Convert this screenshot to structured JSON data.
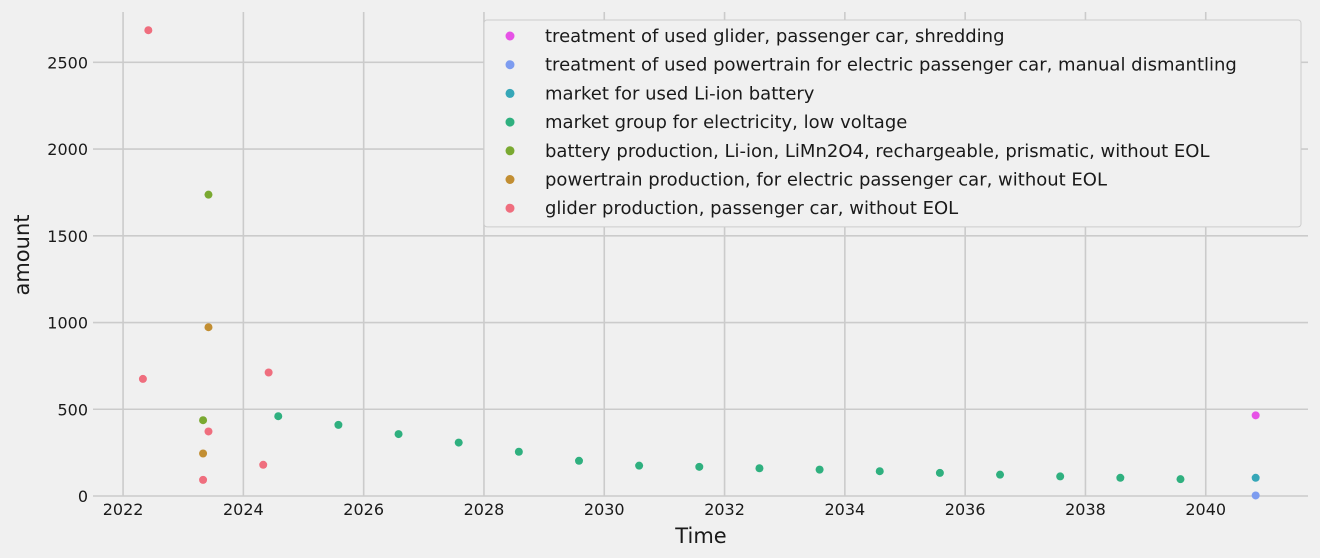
{
  "chart_data": {
    "type": "scatter",
    "title": "",
    "xlabel": "Time",
    "ylabel": "amount",
    "xlim": [
      2021.5,
      2041.7
    ],
    "ylim": [
      0,
      2790
    ],
    "xticks": [
      "2022",
      "2024",
      "2026",
      "2028",
      "2030",
      "2032",
      "2034",
      "2036",
      "2038",
      "2040"
    ],
    "yticks": [
      "0",
      "500",
      "1000",
      "1500",
      "2000",
      "2500"
    ],
    "grid": true,
    "legend_position": "top-right",
    "series": [
      {
        "name": "treatment of used glider, passenger car, shredding",
        "color": "#e652e6",
        "points": [
          [
            2040.83,
            465
          ]
        ]
      },
      {
        "name": "treatment of used powertrain for electric passenger car, manual dismantling",
        "color": "#7d9cf0",
        "points": [
          [
            2040.83,
            3
          ]
        ]
      },
      {
        "name": "market for used Li-ion battery",
        "color": "#36a7b8",
        "points": [
          [
            2040.83,
            105
          ]
        ]
      },
      {
        "name": "market group for electricity, low voltage",
        "color": "#2fb07f",
        "points": [
          [
            2024.58,
            460
          ],
          [
            2025.58,
            410
          ],
          [
            2026.58,
            357
          ],
          [
            2027.58,
            308
          ],
          [
            2028.58,
            255
          ],
          [
            2029.58,
            203
          ],
          [
            2030.58,
            175
          ],
          [
            2031.58,
            168
          ],
          [
            2032.58,
            160
          ],
          [
            2033.58,
            152
          ],
          [
            2034.58,
            143
          ],
          [
            2035.58,
            133
          ],
          [
            2036.58,
            123
          ],
          [
            2037.58,
            113
          ],
          [
            2038.58,
            105
          ],
          [
            2039.58,
            97
          ]
        ]
      },
      {
        "name": "battery production, Li-ion, LiMn2O4, rechargeable, prismatic, without EOL",
        "color": "#7aa931",
        "points": [
          [
            2023.33,
            437
          ],
          [
            2023.42,
            1737
          ]
        ]
      },
      {
        "name": "powertrain production, for electric passenger car, without EOL",
        "color": "#c28e32",
        "points": [
          [
            2023.33,
            245
          ],
          [
            2023.42,
            973
          ]
        ]
      },
      {
        "name": "glider production, passenger car, without EOL",
        "color": "#ef6e7e",
        "points": [
          [
            2022.33,
            675
          ],
          [
            2022.42,
            2685
          ],
          [
            2023.33,
            93
          ],
          [
            2023.42,
            372
          ],
          [
            2024.33,
            180
          ],
          [
            2024.42,
            712
          ]
        ]
      }
    ]
  }
}
